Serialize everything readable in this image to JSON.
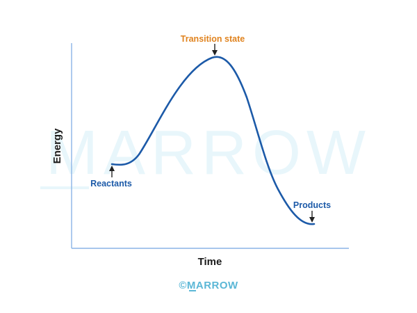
{
  "watermark": {
    "text": "MARROW"
  },
  "axes": {
    "y_label": "Energy",
    "x_label": "Time"
  },
  "labels": {
    "transition_state": "Transition state",
    "reactants": "Reactants",
    "products": "Products"
  },
  "footer": {
    "logo_text": "©MARROW"
  },
  "colors": {
    "curve": "#1c5aa8",
    "transition_label": "#e0831f",
    "axis": "#8ab4e6",
    "watermark": "#e8f6fb",
    "footer_logo": "#5bb7d6"
  }
}
